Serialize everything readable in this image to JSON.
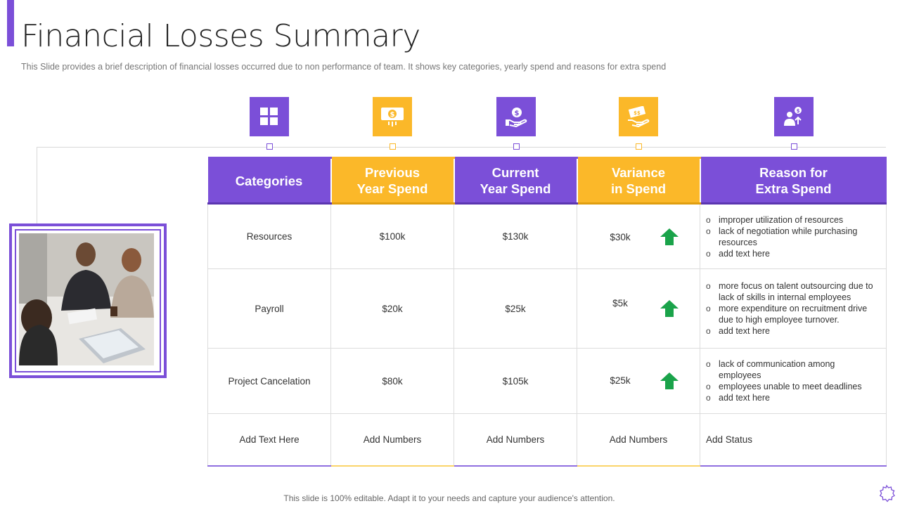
{
  "title": "Financial Losses Summary",
  "subtitle": "This Slide provides  a brief description of financial losses occurred due to non performance  of team. It shows key categories, yearly spend and reasons for extra spend",
  "colors": {
    "purple": "#7b4fd8",
    "yellow": "#fbb829",
    "arrow_green": "#1aa34a"
  },
  "icons": [
    "grid-icon",
    "money-bill-icon",
    "hand-coin-icon",
    "cash-hand-icon",
    "person-coin-icon"
  ],
  "headers": {
    "categories": "Categories",
    "previous_line1": "Previous",
    "previous_line2": "Year Spend",
    "current_line1": "Current",
    "current_line2": "Year Spend",
    "variance_line1": "Variance",
    "variance_line2": "in Spend",
    "reason_line1": "Reason for",
    "reason_line2": "Extra Spend"
  },
  "rows": [
    {
      "category": "Resources",
      "previous": "$100k",
      "current": "$130k",
      "variance": "$30k",
      "reasons": [
        "improper utilization of resources",
        "lack of negotiation while purchasing resources",
        "add text here"
      ]
    },
    {
      "category": "Payroll",
      "previous": "$20k",
      "current": "$25k",
      "variance": "$5k",
      "reasons": [
        "more focus on talent outsourcing due to lack of skills in internal employees",
        "more expenditure on recruitment drive due to high employee turnover.",
        "add text here"
      ]
    },
    {
      "category": "Project Cancelation",
      "previous": "$80k",
      "current": "$105k",
      "variance": "$25k",
      "reasons": [
        "lack of communication among employees",
        "employees unable to meet deadlines",
        "add text here"
      ]
    }
  ],
  "placeholder_row": {
    "category": "Add Text Here",
    "previous": "Add Numbers",
    "current": "Add Numbers",
    "variance": "Add Numbers",
    "reason": "Add Status"
  },
  "footer": "This slide is 100% editable. Adapt it to your needs and capture your audience's attention."
}
